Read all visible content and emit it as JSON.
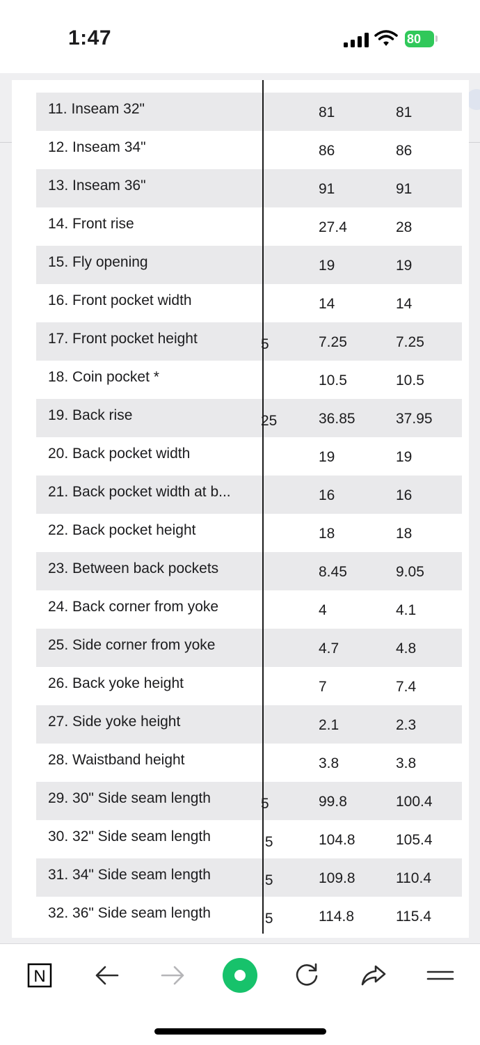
{
  "status_bar": {
    "time": "1:47",
    "battery": "80"
  },
  "table": {
    "rows": [
      {
        "label": "11. Inseam 32\"",
        "partial": "",
        "v1": "81",
        "v2": "81"
      },
      {
        "label": "12. Inseam 34\"",
        "partial": "",
        "v1": "86",
        "v2": "86"
      },
      {
        "label": "13. Inseam 36\"",
        "partial": "",
        "v1": "91",
        "v2": "91"
      },
      {
        "label": "14. Front rise",
        "partial": "",
        "v1": "27.4",
        "v2": "28"
      },
      {
        "label": "15. Fly opening",
        "partial": "",
        "v1": "19",
        "v2": "19"
      },
      {
        "label": "16. Front pocket width",
        "partial": "",
        "v1": "14",
        "v2": "14"
      },
      {
        "label": "17. Front pocket height",
        "partial": "5",
        "v1": "7.25",
        "v2": "7.25"
      },
      {
        "label": "18. Coin pocket *",
        "partial": "",
        "v1": "10.5",
        "v2": "10.5"
      },
      {
        "label": "19. Back rise",
        "partial": "25",
        "v1": "36.85",
        "v2": "37.95"
      },
      {
        "label": "20. Back pocket width",
        "partial": "",
        "v1": "19",
        "v2": "19"
      },
      {
        "label": "21. Back pocket width at b...",
        "partial": "",
        "v1": "16",
        "v2": "16"
      },
      {
        "label": "22. Back pocket height",
        "partial": "",
        "v1": "18",
        "v2": "18"
      },
      {
        "label": "23. Between back pockets",
        "partial": "",
        "v1": "8.45",
        "v2": "9.05"
      },
      {
        "label": "24. Back corner from yoke",
        "partial": "",
        "v1": "4",
        "v2": "4.1"
      },
      {
        "label": "25. Side corner from yoke",
        "partial": "",
        "v1": "4.7",
        "v2": "4.8"
      },
      {
        "label": "26. Back yoke height",
        "partial": "",
        "v1": "7",
        "v2": "7.4"
      },
      {
        "label": "27. Side yoke height",
        "partial": "",
        "v1": "2.1",
        "v2": "2.3"
      },
      {
        "label": "28. Waistband height",
        "partial": "",
        "v1": "3.8",
        "v2": "3.8"
      },
      {
        "label": "29. 30\" Side seam length",
        "partial": "5",
        "v1": "99.8",
        "v2": "100.4"
      },
      {
        "label": "30. 32\" Side seam length",
        "partial": ".5",
        "v1": "104.8",
        "v2": "105.4"
      },
      {
        "label": "31. 34\" Side seam length",
        "partial": ".5",
        "v1": "109.8",
        "v2": "110.4"
      },
      {
        "label": "32. 36\" Side seam length",
        "partial": ".5",
        "v1": "114.8",
        "v2": "115.4"
      }
    ]
  },
  "toolbar": {
    "notion_logo": "N",
    "items": [
      "notion-icon",
      "back-arrow-icon",
      "forward-arrow-icon",
      "record-icon",
      "refresh-icon",
      "share-icon",
      "menu-icon"
    ]
  },
  "colors": {
    "accent_green": "#17c26b",
    "battery_green": "#30c85a",
    "row_shade": "#e9e9eb"
  }
}
